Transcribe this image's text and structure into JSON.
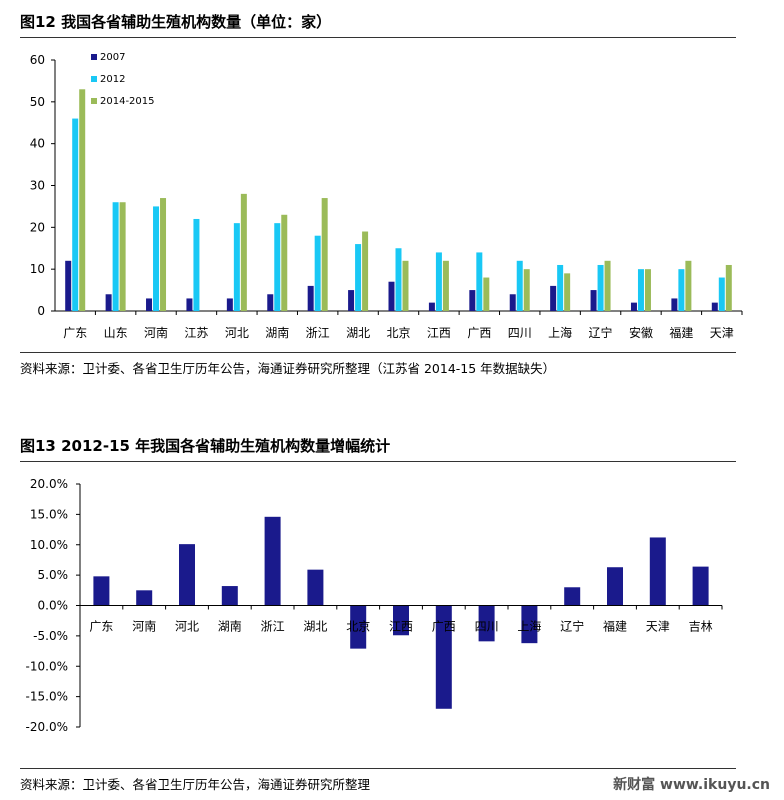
{
  "figure12": {
    "title": "图12  我国各省辅助生殖机构数量（单位：家）",
    "source": "资料来源：卫计委、各省卫生厅历年公告，海通证券研究所整理（江苏省 2014-15 年数据缺失）",
    "chart_data": {
      "type": "bar",
      "categories": [
        "广东",
        "山东",
        "河南",
        "江苏",
        "河北",
        "湖南",
        "浙江",
        "湖北",
        "北京",
        "江西",
        "广西",
        "四川",
        "上海",
        "辽宁",
        "安徽",
        "福建",
        "天津"
      ],
      "series": [
        {
          "name": "2007",
          "color": "#1a1a8c",
          "values": [
            12,
            4,
            3,
            3,
            3,
            4,
            6,
            5,
            7,
            2,
            5,
            4,
            6,
            5,
            2,
            3,
            2
          ]
        },
        {
          "name": "2012",
          "color": "#19c8f5",
          "values": [
            46,
            26,
            25,
            22,
            21,
            21,
            18,
            16,
            15,
            14,
            14,
            12,
            11,
            11,
            10,
            10,
            8
          ]
        },
        {
          "name": "2014-2015",
          "color": "#9bbb59",
          "values": [
            53,
            26,
            27,
            null,
            28,
            23,
            27,
            19,
            12,
            12,
            8,
            10,
            9,
            12,
            10,
            12,
            11
          ]
        }
      ],
      "ylim": [
        0,
        60
      ],
      "yticks": [
        0,
        10,
        20,
        30,
        40,
        50,
        60
      ],
      "ytick_labels": [
        "0",
        "10",
        "20",
        "30",
        "40",
        "50",
        "60"
      ],
      "legend_position": "top-left",
      "grid": false
    }
  },
  "figure13": {
    "title": "图13  2012-15 年我国各省辅助生殖机构数量增幅统计",
    "source": "资料来源：卫计委、各省卫生厅历年公告，海通证券研究所整理",
    "chart_data": {
      "type": "bar",
      "categories": [
        "广东",
        "河南",
        "河北",
        "湖南",
        "浙江",
        "湖北",
        "北京",
        "江西",
        "广西",
        "四川",
        "上海",
        "辽宁",
        "福建",
        "天津",
        "吉林"
      ],
      "values": [
        4.8,
        2.5,
        10.1,
        3.2,
        14.6,
        5.9,
        -7.1,
        -4.9,
        -17.0,
        -5.9,
        -6.2,
        3.0,
        6.3,
        11.2,
        6.4
      ],
      "color": "#1a1a8c",
      "ylim": [
        -20,
        20
      ],
      "yticks": [
        -20,
        -15,
        -10,
        -5,
        0,
        5,
        10,
        15,
        20
      ],
      "ytick_labels": [
        "-20.0%",
        "-15.0%",
        "-10.0%",
        "-5.0%",
        "0.0%",
        "5.0%",
        "10.0%",
        "15.0%",
        "20.0%"
      ],
      "grid": false
    }
  },
  "watermark": "新财富 www.ikuyu.cn"
}
